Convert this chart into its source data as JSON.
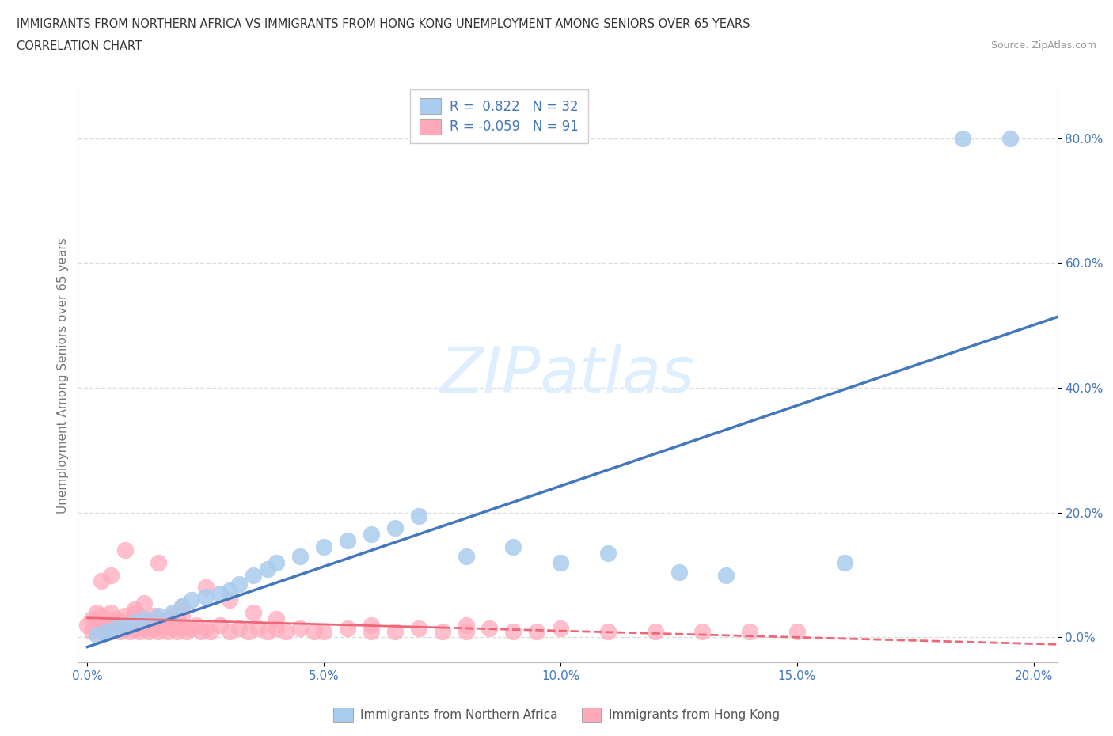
{
  "title_line1": "IMMIGRANTS FROM NORTHERN AFRICA VS IMMIGRANTS FROM HONG KONG UNEMPLOYMENT AMONG SENIORS OVER 65 YEARS",
  "title_line2": "CORRELATION CHART",
  "source": "Source: ZipAtlas.com",
  "ylabel": "Unemployment Among Seniors over 65 years",
  "blue_color": "#aaccee",
  "pink_color": "#ffaabb",
  "blue_line_color": "#4477bb",
  "pink_line_color": "#ee6677",
  "watermark": "ZIPatlas",
  "watermark_color": "#ddeeff",
  "background_color": "#ffffff",
  "grid_color": "#dddddd",
  "legend_label1": "R =  0.822   N = 32",
  "legend_label2": "R = -0.059   N = 91",
  "bottom_label1": "Immigrants from Northern Africa",
  "bottom_label2": "Immigrants from Hong Kong",
  "xlim": [
    0.0,
    0.205
  ],
  "ylim": [
    -0.04,
    0.88
  ],
  "xtick_values": [
    0.0,
    0.05,
    0.1,
    0.15,
    0.2
  ],
  "ytick_values": [
    0.0,
    0.2,
    0.4,
    0.6,
    0.8
  ],
  "na_x": [
    0.002,
    0.004,
    0.006,
    0.008,
    0.01,
    0.012,
    0.015,
    0.018,
    0.02,
    0.022,
    0.025,
    0.028,
    0.03,
    0.032,
    0.035,
    0.038,
    0.04,
    0.045,
    0.05,
    0.055,
    0.06,
    0.065,
    0.07,
    0.08,
    0.09,
    0.1,
    0.11,
    0.125,
    0.135,
    0.16,
    0.185,
    0.195
  ],
  "na_y": [
    0.005,
    0.01,
    0.015,
    0.02,
    0.025,
    0.03,
    0.035,
    0.04,
    0.05,
    0.06,
    0.065,
    0.07,
    0.075,
    0.085,
    0.1,
    0.11,
    0.12,
    0.13,
    0.145,
    0.155,
    0.165,
    0.175,
    0.195,
    0.13,
    0.145,
    0.12,
    0.135,
    0.105,
    0.1,
    0.12,
    0.8,
    0.8
  ],
  "hk_x": [
    0.0,
    0.001,
    0.001,
    0.002,
    0.002,
    0.002,
    0.003,
    0.003,
    0.003,
    0.004,
    0.004,
    0.005,
    0.005,
    0.005,
    0.006,
    0.006,
    0.007,
    0.007,
    0.008,
    0.008,
    0.009,
    0.009,
    0.01,
    0.01,
    0.01,
    0.011,
    0.011,
    0.012,
    0.012,
    0.013,
    0.013,
    0.014,
    0.014,
    0.015,
    0.015,
    0.016,
    0.016,
    0.017,
    0.017,
    0.018,
    0.018,
    0.019,
    0.019,
    0.02,
    0.02,
    0.021,
    0.022,
    0.023,
    0.024,
    0.025,
    0.026,
    0.028,
    0.03,
    0.032,
    0.034,
    0.036,
    0.038,
    0.04,
    0.042,
    0.045,
    0.048,
    0.05,
    0.055,
    0.06,
    0.065,
    0.07,
    0.075,
    0.08,
    0.085,
    0.09,
    0.095,
    0.1,
    0.11,
    0.12,
    0.13,
    0.14,
    0.15,
    0.025,
    0.03,
    0.035,
    0.015,
    0.008,
    0.005,
    0.003,
    0.02,
    0.04,
    0.06,
    0.08,
    0.01,
    0.012,
    0.018
  ],
  "hk_y": [
    0.02,
    0.01,
    0.03,
    0.015,
    0.025,
    0.04,
    0.01,
    0.02,
    0.035,
    0.015,
    0.03,
    0.01,
    0.025,
    0.04,
    0.015,
    0.03,
    0.01,
    0.025,
    0.015,
    0.035,
    0.01,
    0.03,
    0.015,
    0.025,
    0.04,
    0.01,
    0.035,
    0.015,
    0.03,
    0.01,
    0.025,
    0.015,
    0.035,
    0.01,
    0.03,
    0.015,
    0.025,
    0.01,
    0.03,
    0.015,
    0.025,
    0.01,
    0.03,
    0.015,
    0.035,
    0.01,
    0.015,
    0.02,
    0.01,
    0.015,
    0.01,
    0.02,
    0.01,
    0.015,
    0.01,
    0.015,
    0.01,
    0.015,
    0.01,
    0.015,
    0.01,
    0.01,
    0.015,
    0.01,
    0.01,
    0.015,
    0.01,
    0.01,
    0.015,
    0.01,
    0.01,
    0.015,
    0.01,
    0.01,
    0.01,
    0.01,
    0.01,
    0.08,
    0.06,
    0.04,
    0.12,
    0.14,
    0.1,
    0.09,
    0.05,
    0.03,
    0.02,
    0.02,
    0.045,
    0.055,
    0.035
  ]
}
